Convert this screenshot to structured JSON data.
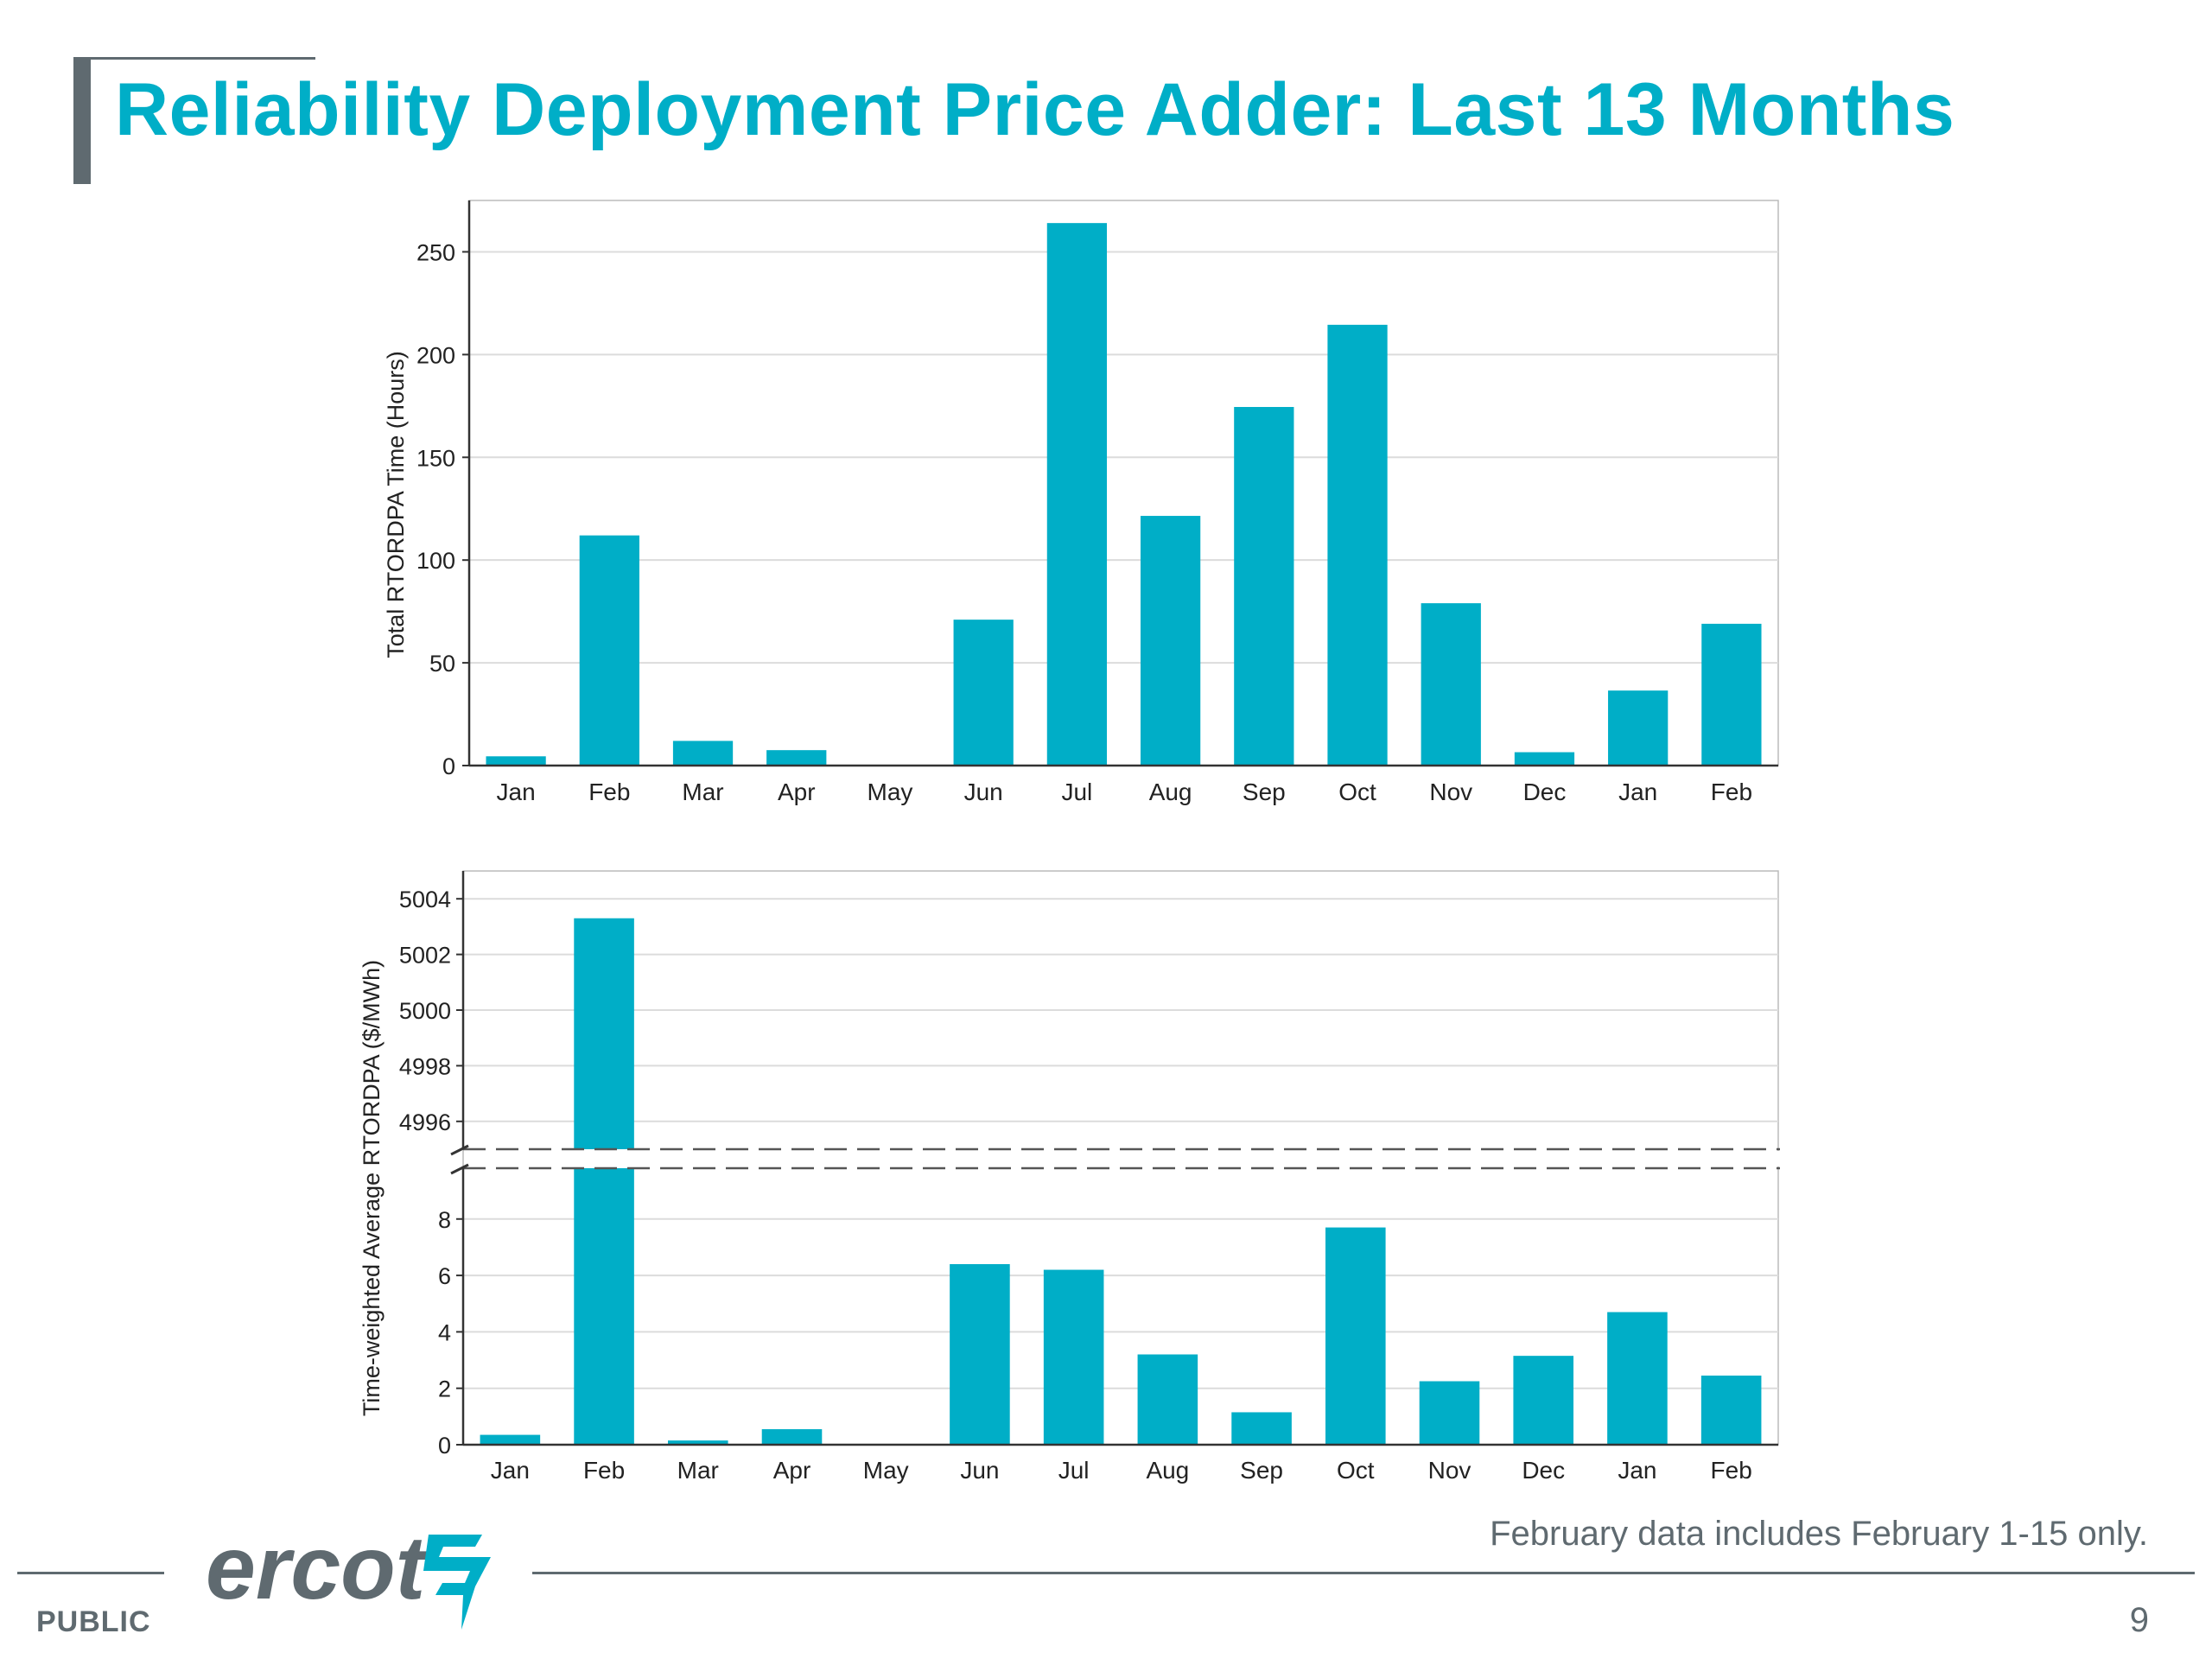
{
  "slide": {
    "title": "Reliability Deployment Price Adder: Last 13 Months",
    "footnote": "February data includes February 1-15 only.",
    "classification": "PUBLIC",
    "page_number": "9",
    "logo_text": "ercot",
    "accent_color": "#00aec7",
    "gray_color": "#5f6a70"
  },
  "chart_data": [
    {
      "type": "bar",
      "categories": [
        "Jan",
        "Feb",
        "Mar",
        "Apr",
        "May",
        "Jun",
        "Jul",
        "Aug",
        "Sep",
        "Oct",
        "Nov",
        "Dec",
        "Jan",
        "Feb"
      ],
      "values": [
        4.5,
        112,
        12,
        7.5,
        0,
        71,
        264,
        121.5,
        174.5,
        214.5,
        79,
        6.5,
        36.5,
        69
      ],
      "ylabel": "Total RTORDPA Time (Hours)",
      "ylim": [
        0,
        275
      ],
      "yticks": [
        0,
        50,
        100,
        150,
        200,
        250
      ],
      "grid": true,
      "color": "#00aec7"
    },
    {
      "type": "bar",
      "categories": [
        "Jan",
        "Feb",
        "Mar",
        "Apr",
        "May",
        "Jun",
        "Jul",
        "Aug",
        "Sep",
        "Oct",
        "Nov",
        "Dec",
        "Jan",
        "Feb"
      ],
      "values": [
        0.35,
        5003.3,
        0.15,
        0.55,
        0,
        6.4,
        6.2,
        3.2,
        1.15,
        7.7,
        2.25,
        3.15,
        4.7,
        2.45
      ],
      "ylabel": "Time-weighted Average RTORDPA ($/MWh)",
      "broken_axis": true,
      "ylim_lower": [
        0,
        9.8
      ],
      "ylim_upper": [
        4995,
        5005
      ],
      "yticks_lower": [
        0,
        2,
        4,
        6,
        8
      ],
      "yticks_upper": [
        4996,
        4998,
        5000,
        5002,
        5004
      ],
      "grid": true,
      "color": "#00aec7"
    }
  ]
}
